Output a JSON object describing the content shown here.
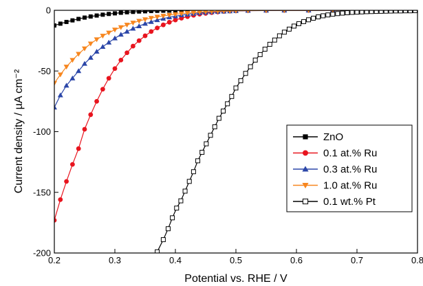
{
  "chart_data": {
    "type": "line",
    "title": "",
    "xlabel": "Potential vs. RHE / V",
    "ylabel": "Current density / µA cm⁻²",
    "xlim": [
      0.2,
      0.8
    ],
    "ylim": [
      -200,
      0
    ],
    "xticks": [
      "0.2",
      "0.3",
      "0.4",
      "0.5",
      "0.6",
      "0.7",
      "0.8"
    ],
    "yticks": [
      "0",
      "-50",
      "-100",
      "-150",
      "-200"
    ],
    "grid": false,
    "legend_position": "bottom-right",
    "series": [
      {
        "name": "ZnO",
        "color": "#000000",
        "marker": "square-filled",
        "x": [
          0.2,
          0.21,
          0.22,
          0.23,
          0.24,
          0.25,
          0.26,
          0.27,
          0.28,
          0.29,
          0.3,
          0.31,
          0.32,
          0.33,
          0.34,
          0.35,
          0.36,
          0.37,
          0.38,
          0.39,
          0.4,
          0.41,
          0.42,
          0.43,
          0.44,
          0.45
        ],
        "y": [
          -12.5,
          -11,
          -9.6,
          -8.3,
          -7.1,
          -6.0,
          -5.1,
          -4.3,
          -3.6,
          -3.0,
          -2.5,
          -2.0,
          -1.6,
          -1.3,
          -1.0,
          -0.8,
          -0.6,
          -0.45,
          -0.33,
          -0.24,
          -0.16,
          -0.1,
          -0.06,
          -0.03,
          -0.01,
          0
        ]
      },
      {
        "name": "0.1 at.% Ru",
        "color": "#e8141e",
        "marker": "circle-filled",
        "x": [
          0.2,
          0.21,
          0.22,
          0.23,
          0.24,
          0.25,
          0.26,
          0.27,
          0.28,
          0.29,
          0.3,
          0.31,
          0.32,
          0.33,
          0.34,
          0.35,
          0.36,
          0.37,
          0.38,
          0.39,
          0.4,
          0.41,
          0.42,
          0.43,
          0.44,
          0.45,
          0.46,
          0.47,
          0.48,
          0.49,
          0.5,
          0.52,
          0.55,
          0.58,
          0.62,
          0.66,
          0.7,
          0.74,
          0.78,
          0.8
        ],
        "y": [
          -173,
          -156,
          -141,
          -127,
          -114,
          -98,
          -86,
          -75,
          -65,
          -56,
          -48,
          -41,
          -35,
          -29.5,
          -25,
          -21,
          -17.5,
          -14.5,
          -12,
          -9.8,
          -8,
          -6.5,
          -5.2,
          -4.1,
          -3.2,
          -2.5,
          -1.9,
          -1.4,
          -1.0,
          -0.7,
          -0.5,
          -0.3,
          -0.15,
          -0.08,
          -0.04,
          -0.02,
          -0.01,
          0,
          0,
          0
        ]
      },
      {
        "name": "0.3 at.% Ru",
        "color": "#2b46a8",
        "marker": "triangle-up-filled",
        "x": [
          0.2,
          0.21,
          0.22,
          0.23,
          0.24,
          0.25,
          0.26,
          0.27,
          0.28,
          0.29,
          0.3,
          0.31,
          0.32,
          0.33,
          0.34,
          0.35,
          0.36,
          0.37,
          0.38,
          0.39,
          0.4,
          0.41,
          0.42,
          0.43,
          0.44,
          0.45,
          0.46,
          0.47,
          0.48,
          0.49,
          0.5,
          0.52,
          0.55,
          0.58,
          0.62,
          0.66,
          0.7,
          0.74,
          0.78,
          0.8
        ],
        "y": [
          -80,
          -70,
          -62,
          -56,
          -50,
          -44,
          -39,
          -34,
          -30,
          -26.5,
          -23,
          -20,
          -17.5,
          -15,
          -13,
          -11,
          -9.5,
          -8,
          -6.8,
          -5.7,
          -4.8,
          -4,
          -3.3,
          -2.7,
          -2.2,
          -1.8,
          -1.4,
          -1.1,
          -0.9,
          -0.7,
          -0.5,
          -0.3,
          -0.15,
          -0.08,
          -0.04,
          -0.02,
          -0.01,
          0,
          0,
          0
        ]
      },
      {
        "name": "1.0 at.% Ru",
        "color": "#f7861e",
        "marker": "triangle-down-filled",
        "x": [
          0.2,
          0.21,
          0.22,
          0.23,
          0.24,
          0.25,
          0.26,
          0.27,
          0.28,
          0.29,
          0.3,
          0.31,
          0.32,
          0.33,
          0.34,
          0.35,
          0.36,
          0.37,
          0.38,
          0.39,
          0.4,
          0.41,
          0.42,
          0.43,
          0.44,
          0.45,
          0.46,
          0.47,
          0.48,
          0.49,
          0.5,
          0.52,
          0.55,
          0.58,
          0.62,
          0.66,
          0.7,
          0.74,
          0.78,
          0.8
        ],
        "y": [
          -60,
          -53,
          -46.5,
          -41,
          -36,
          -31.5,
          -27.5,
          -24,
          -21,
          -18.5,
          -16,
          -14,
          -12,
          -10.3,
          -8.8,
          -7.5,
          -6.4,
          -5.4,
          -4.6,
          -3.9,
          -3.3,
          -2.7,
          -2.3,
          -1.9,
          -1.5,
          -1.2,
          -1.0,
          -0.8,
          -0.6,
          -0.5,
          -0.4,
          -0.25,
          -0.12,
          -0.06,
          -0.03,
          -0.01,
          0,
          0,
          0,
          0
        ]
      },
      {
        "name": "0.1 wt.% Pt",
        "color": "#000000",
        "marker": "square-open",
        "x": [
          0.37,
          0.38,
          0.388,
          0.395,
          0.402,
          0.409,
          0.416,
          0.423,
          0.43,
          0.437,
          0.444,
          0.451,
          0.458,
          0.465,
          0.472,
          0.479,
          0.486,
          0.493,
          0.5,
          0.508,
          0.516,
          0.524,
          0.532,
          0.54,
          0.548,
          0.556,
          0.564,
          0.572,
          0.58,
          0.588,
          0.596,
          0.604,
          0.612,
          0.62,
          0.628,
          0.636,
          0.644,
          0.652,
          0.66,
          0.668,
          0.676,
          0.684,
          0.692,
          0.7,
          0.708,
          0.716,
          0.724,
          0.732,
          0.74,
          0.748,
          0.756,
          0.764,
          0.772,
          0.78,
          0.788,
          0.796
        ],
        "y": [
          -199,
          -189,
          -180,
          -171,
          -163,
          -157,
          -149,
          -141,
          -133,
          -124,
          -117,
          -110,
          -103,
          -96,
          -89,
          -83,
          -77,
          -71,
          -64,
          -58,
          -52,
          -46.5,
          -41,
          -36.5,
          -32,
          -28,
          -24.5,
          -21,
          -18,
          -15.5,
          -13,
          -11,
          -9.3,
          -7.8,
          -6.5,
          -5.4,
          -4.5,
          -3.8,
          -3.2,
          -2.7,
          -2.3,
          -2.0,
          -1.7,
          -1.5,
          -1.3,
          -1.1,
          -1.0,
          -0.9,
          -0.8,
          -0.7,
          -0.6,
          -0.5,
          -0.5,
          -0.4,
          -0.4,
          -0.3
        ]
      }
    ]
  }
}
